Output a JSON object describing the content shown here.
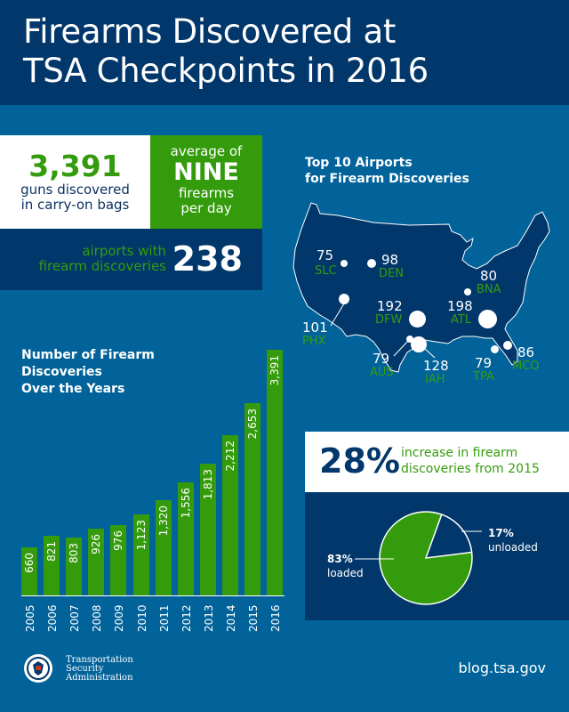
{
  "header": {
    "title_line1": "Firearms Discovered at",
    "title_line2": "TSA Checkpoints in 2016"
  },
  "stats": {
    "guns_count": "3,391",
    "guns_label_line1": "guns discovered",
    "guns_label_line2": "in carry-on bags",
    "avg_line1": "average of",
    "avg_value": "NINE",
    "avg_line2": "firearms",
    "avg_line3": "per day",
    "airports_label_line1": "airports with",
    "airports_label_line2": "firearm discoveries",
    "airports_count": "238"
  },
  "map": {
    "title_line1": "Top 10 Airports",
    "title_line2": "for Firearm Discoveries",
    "airports": [
      {
        "code": "SLC",
        "count": "75"
      },
      {
        "code": "DEN",
        "count": "98"
      },
      {
        "code": "PHX",
        "count": "101"
      },
      {
        "code": "DFW",
        "count": "192"
      },
      {
        "code": "ATL",
        "count": "198"
      },
      {
        "code": "BNA",
        "count": "80"
      },
      {
        "code": "AUS",
        "count": "79"
      },
      {
        "code": "IAH",
        "count": "128"
      },
      {
        "code": "TPA",
        "count": "79"
      },
      {
        "code": "MCO",
        "count": "86"
      }
    ]
  },
  "increase": {
    "pct": "28%",
    "desc_line1": "increase in firearm",
    "desc_line2": "discoveries from 2015",
    "loaded_pct": "83%",
    "loaded_label": "loaded",
    "unloaded_pct": "17%",
    "unloaded_label": "unloaded"
  },
  "footer": {
    "org_line1": "Transportation",
    "org_line2": "Security",
    "org_line3": "Administration",
    "url": "blog.tsa.gov"
  },
  "colors": {
    "navy": "#02376b",
    "blue": "#02639a",
    "green": "#349c0c",
    "white": "#ffffff"
  },
  "chart_data": [
    {
      "type": "bar",
      "title": "Number of Firearm Discoveries Over the Years",
      "title_line1": "Number of Firearm",
      "title_line2": "Discoveries",
      "title_line3": "Over the Years",
      "categories": [
        "2005",
        "2006",
        "2007",
        "2008",
        "2009",
        "2010",
        "2011",
        "2012",
        "2013",
        "2014",
        "2015",
        "2016"
      ],
      "values": [
        660,
        821,
        803,
        926,
        976,
        1123,
        1320,
        1556,
        1813,
        2212,
        2653,
        3391
      ],
      "labels": [
        "660",
        "821",
        "803",
        "926",
        "976",
        "1,123",
        "1,320",
        "1,556",
        "1,813",
        "2,212",
        "2,653",
        "3,391"
      ],
      "xlabel": "",
      "ylabel": "",
      "grid": false
    },
    {
      "type": "pie",
      "title": "Loaded vs unloaded firearms",
      "categories": [
        "loaded",
        "unloaded"
      ],
      "values": [
        83,
        17
      ]
    },
    {
      "type": "scatter",
      "title": "Top 10 Airports for Firearm Discoveries",
      "categories": [
        "SLC",
        "DEN",
        "PHX",
        "DFW",
        "ATL",
        "BNA",
        "AUS",
        "IAH",
        "TPA",
        "MCO"
      ],
      "values": [
        75,
        98,
        101,
        192,
        198,
        80,
        79,
        128,
        79,
        86
      ]
    }
  ]
}
